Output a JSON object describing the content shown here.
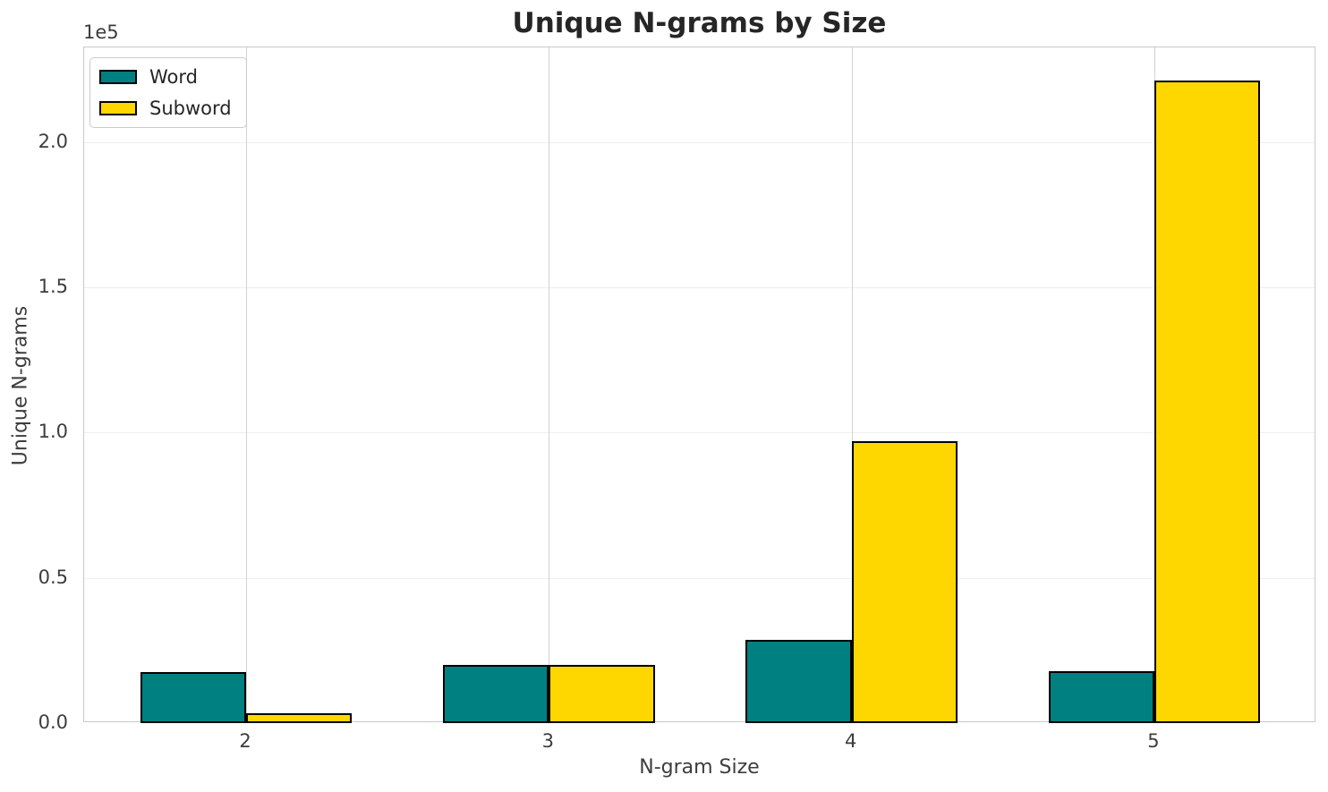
{
  "chart_data": {
    "type": "bar",
    "title": "Unique N-grams by Size",
    "xlabel": "N-gram Size",
    "ylabel": "Unique N-grams",
    "y_offset_text": "1e5",
    "categories": [
      2,
      3,
      4,
      5
    ],
    "series": [
      {
        "name": "Word",
        "color": "#008080",
        "values": [
          17500,
          20000,
          28500,
          18000
        ]
      },
      {
        "name": "Subword",
        "color": "#FFD700",
        "values": [
          3500,
          20000,
          97000,
          221000
        ]
      }
    ],
    "bar_width": 0.35,
    "bar_edge_color": "#000000",
    "xlim": [
      1.465,
      5.535
    ],
    "ylim": [
      0,
      232500
    ],
    "yticks": {
      "values": [
        0,
        50000,
        100000,
        150000,
        200000
      ],
      "labels": [
        "0.0",
        "0.5",
        "1.0",
        "1.5",
        "2.0"
      ]
    },
    "xticks": {
      "values": [
        2,
        3,
        4,
        5
      ],
      "labels": [
        "2",
        "3",
        "4",
        "5"
      ]
    },
    "grid": true,
    "legend_position": "upper-left",
    "colors": {
      "h_grid": "#efefef",
      "v_grid": "#d2d2d2",
      "spine": "#c9c9c9",
      "text": "#3d3d3d",
      "title_text": "#262626"
    }
  }
}
